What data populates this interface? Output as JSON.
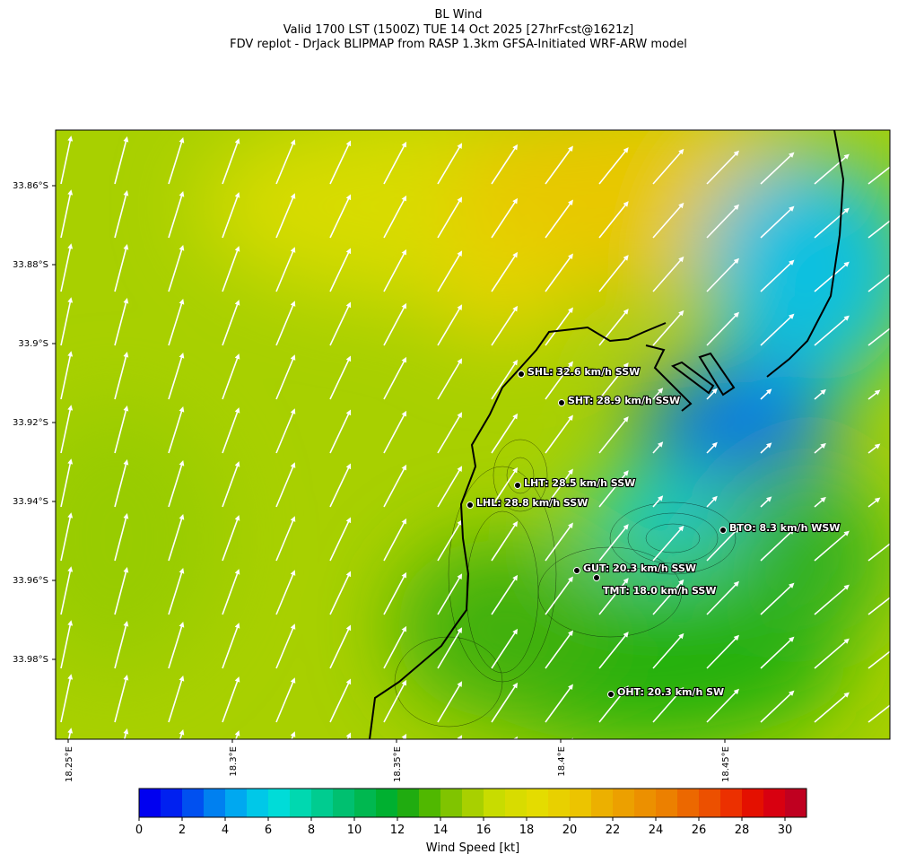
{
  "header": {
    "title": "BL Wind",
    "subtitle": "Valid 1700 LST (1500Z) TUE 14 Oct 2025 [27hrFcst@1621z]",
    "source": "FDV replot - DrJack BLIPMAP from RASP 1.3km GFSA-Initiated WRF-ARW model"
  },
  "map": {
    "lat_ticks": [
      {
        "value": -33.86,
        "label": "33.86°S"
      },
      {
        "value": -33.88,
        "label": "33.88°S"
      },
      {
        "value": -33.9,
        "label": "33.9°S"
      },
      {
        "value": -33.92,
        "label": "33.92°S"
      },
      {
        "value": -33.94,
        "label": "33.94°S"
      },
      {
        "value": -33.96,
        "label": "33.96°S"
      },
      {
        "value": -33.98,
        "label": "33.98°S"
      }
    ],
    "lon_ticks": [
      {
        "value": 18.25,
        "label": "18.25°E"
      },
      {
        "value": 18.3,
        "label": "18.3°E"
      },
      {
        "value": 18.35,
        "label": "18.35°E"
      },
      {
        "value": 18.4,
        "label": "18.4°E"
      },
      {
        "value": 18.45,
        "label": "18.45°E"
      }
    ],
    "stations": [
      "SHL: 32.6 km/h SSW",
      "SHT: 28.9 km/h SSW",
      "LHT: 28.5 km/h SSW",
      "LHL: 28.8 km/h SSW",
      "BTO: 8.3 km/h WSW",
      "GUT: 20.3 km/h SSW",
      "TMT: 18.0 km/h SSW",
      "OHT: 20.3 km/h SW"
    ],
    "colorbar": {
      "label": "Wind Speed [kt]",
      "lim": [
        0,
        31
      ],
      "ticks": [
        0,
        2,
        4,
        6,
        8,
        10,
        12,
        14,
        16,
        18,
        20,
        22,
        24,
        26,
        28,
        30
      ],
      "colors": [
        "#0000f0",
        "#0020f0",
        "#0050f0",
        "#0080f0",
        "#00a8f0",
        "#00c8e8",
        "#00dcd8",
        "#00d8b0",
        "#00cc90",
        "#00c070",
        "#00b850",
        "#00b030",
        "#20ac10",
        "#50b800",
        "#80c400",
        "#a8d000",
        "#c8dc00",
        "#d8dc00",
        "#e4dc00",
        "#e8d000",
        "#ecc400",
        "#ecb000",
        "#eca000",
        "#ec9000",
        "#ec8000",
        "#ec6800",
        "#ec5000",
        "#ec3000",
        "#e41000",
        "#d80010",
        "#c00020"
      ]
    }
  }
}
